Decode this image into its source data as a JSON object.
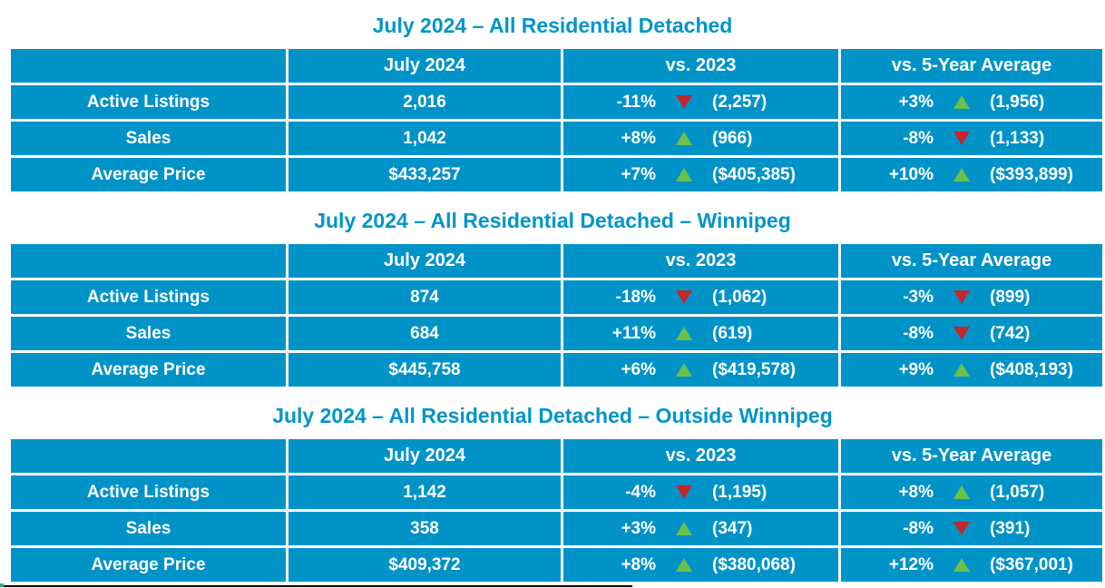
{
  "colors": {
    "table_blue": "#0093c8",
    "title_blue": "#0095c9",
    "trend_up_green": "#6cc04a",
    "trend_down_red": "#c1272d",
    "cell_text": "#ffffff"
  },
  "chart_data": [
    {
      "type": "table",
      "title": "July 2024 – All Residential Detached",
      "columns": [
        "",
        "July 2024",
        "vs. 2023",
        "vs. 5-Year Average"
      ],
      "rows": [
        {
          "label": "Active Listings",
          "current": "2,016",
          "vs_2023": {
            "pct": "-11%",
            "dir": "down",
            "value": "(2,257)"
          },
          "vs_5yr": {
            "pct": "+3%",
            "dir": "up",
            "value": "(1,956)"
          }
        },
        {
          "label": "Sales",
          "current": "1,042",
          "vs_2023": {
            "pct": "+8%",
            "dir": "up",
            "value": "(966)"
          },
          "vs_5yr": {
            "pct": "-8%",
            "dir": "down",
            "value": "(1,133)"
          }
        },
        {
          "label": "Average Price",
          "current": "$433,257",
          "vs_2023": {
            "pct": "+7%",
            "dir": "up",
            "value": "($405,385)"
          },
          "vs_5yr": {
            "pct": "+10%",
            "dir": "up",
            "value": "($393,899)"
          }
        }
      ]
    },
    {
      "type": "table",
      "title": "July 2024 – All Residential Detached – Winnipeg",
      "columns": [
        "",
        "July 2024",
        "vs. 2023",
        "vs. 5-Year Average"
      ],
      "rows": [
        {
          "label": "Active Listings",
          "current": "874",
          "vs_2023": {
            "pct": "-18%",
            "dir": "down",
            "value": "(1,062)"
          },
          "vs_5yr": {
            "pct": "-3%",
            "dir": "down",
            "value": "(899)"
          }
        },
        {
          "label": "Sales",
          "current": "684",
          "vs_2023": {
            "pct": "+11%",
            "dir": "up",
            "value": "(619)"
          },
          "vs_5yr": {
            "pct": "-8%",
            "dir": "down",
            "value": "(742)"
          }
        },
        {
          "label": "Average Price",
          "current": "$445,758",
          "vs_2023": {
            "pct": "+6%",
            "dir": "up",
            "value": "($419,578)"
          },
          "vs_5yr": {
            "pct": "+9%",
            "dir": "up",
            "value": "($408,193)"
          }
        }
      ]
    },
    {
      "type": "table",
      "title": "July 2024 – All Residential Detached – Outside Winnipeg",
      "columns": [
        "",
        "July 2024",
        "vs. 2023",
        "vs. 5-Year Average"
      ],
      "rows": [
        {
          "label": "Active Listings",
          "current": "1,142",
          "vs_2023": {
            "pct": "-4%",
            "dir": "down",
            "value": "(1,195)"
          },
          "vs_5yr": {
            "pct": "+8%",
            "dir": "up",
            "value": "(1,057)"
          }
        },
        {
          "label": "Sales",
          "current": "358",
          "vs_2023": {
            "pct": "+3%",
            "dir": "up",
            "value": "(347)"
          },
          "vs_5yr": {
            "pct": "-8%",
            "dir": "down",
            "value": "(391)"
          }
        },
        {
          "label": "Average Price",
          "current": "$409,372",
          "vs_2023": {
            "pct": "+8%",
            "dir": "up",
            "value": "($380,068)"
          },
          "vs_5yr": {
            "pct": "+12%",
            "dir": "up",
            "value": "($367,001)"
          }
        }
      ]
    }
  ]
}
